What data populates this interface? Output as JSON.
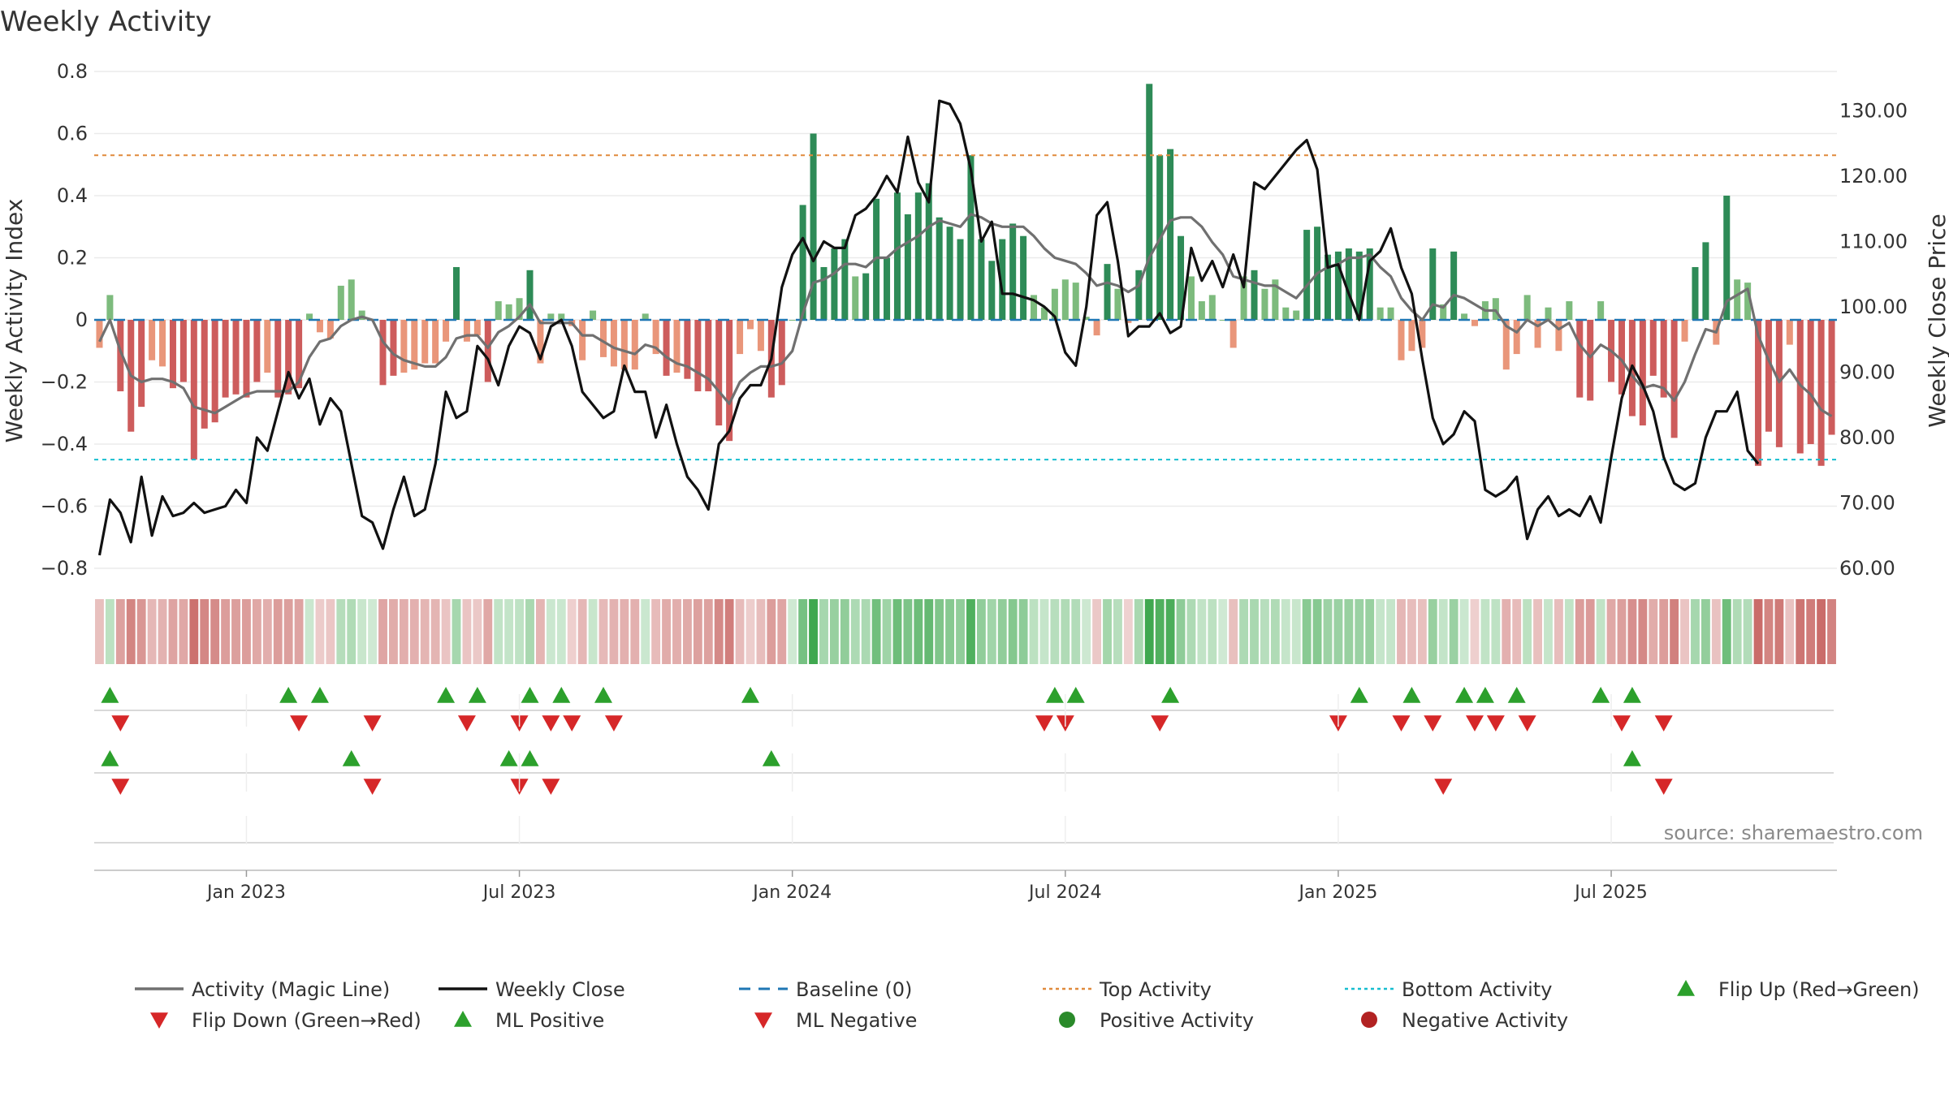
{
  "chart_data": {
    "type": "bar+line",
    "title": "Weekly Activity",
    "ylabel_left": "Weekly Activity Index",
    "ylabel_right": "Weekly Close Price",
    "ylim_left": [
      -0.8,
      0.8
    ],
    "yticks_left": [
      "0.8",
      "0.6",
      "0.4",
      "0.2",
      "0",
      "−0.2",
      "−0.4",
      "−0.6",
      "−0.8"
    ],
    "ytick_values_left": [
      0.8,
      0.6,
      0.4,
      0.2,
      0,
      -0.2,
      -0.4,
      -0.6,
      -0.8
    ],
    "ylim_right": [
      60,
      136
    ],
    "yticks_right": [
      "130.00",
      "120.00",
      "110.00",
      "100.00",
      "90.00",
      "80.00",
      "70.00",
      "60.00"
    ],
    "ytick_values_right": [
      130,
      120,
      110,
      100,
      90,
      80,
      70,
      60
    ],
    "x_labels": [
      "Jan 2023",
      "Jul 2023",
      "Jan 2024",
      "Jul 2024",
      "Jan 2025",
      "Jul 2025"
    ],
    "x_label_weeks": [
      14,
      40,
      66,
      92,
      118,
      144
    ],
    "top_activity": 0.53,
    "bottom_activity": -0.45,
    "activity": [
      -0.09,
      0.08,
      -0.23,
      -0.36,
      -0.28,
      -0.13,
      -0.15,
      -0.22,
      -0.2,
      -0.45,
      -0.35,
      -0.33,
      -0.25,
      -0.24,
      -0.25,
      -0.2,
      -0.17,
      -0.25,
      -0.24,
      -0.22,
      0.02,
      -0.04,
      -0.06,
      0.11,
      0.13,
      0.03,
      0.0,
      -0.21,
      -0.18,
      -0.17,
      -0.16,
      -0.14,
      -0.14,
      -0.07,
      0.17,
      -0.07,
      -0.05,
      -0.2,
      0.06,
      0.05,
      0.07,
      0.16,
      -0.14,
      0.02,
      0.02,
      -0.02,
      -0.13,
      0.03,
      -0.12,
      -0.15,
      -0.16,
      -0.16,
      0.02,
      -0.11,
      -0.18,
      -0.17,
      -0.19,
      -0.23,
      -0.23,
      -0.34,
      -0.39,
      -0.11,
      -0.03,
      -0.1,
      -0.25,
      -0.21,
      0.0,
      0.37,
      0.6,
      0.17,
      0.23,
      0.26,
      0.14,
      0.15,
      0.39,
      0.2,
      0.41,
      0.34,
      0.41,
      0.44,
      0.33,
      0.3,
      0.26,
      0.53,
      0.26,
      0.19,
      0.26,
      0.31,
      0.27,
      0.08,
      0.04,
      0.1,
      0.13,
      0.12,
      0.01,
      -0.05,
      0.18,
      0.1,
      -0.01,
      0.16,
      0.76,
      0.53,
      0.55,
      0.27,
      0.14,
      0.06,
      0.08,
      0.0,
      -0.09,
      0.14,
      0.16,
      0.1,
      0.13,
      0.04,
      0.03,
      0.29,
      0.3,
      0.21,
      0.22,
      0.23,
      0.22,
      0.23,
      0.04,
      0.04,
      -0.13,
      -0.1,
      -0.09,
      0.23,
      0.05,
      0.22,
      0.02,
      -0.02,
      0.06,
      0.07,
      -0.16,
      -0.11,
      0.08,
      -0.09,
      0.04,
      -0.1,
      0.06,
      -0.25,
      -0.26,
      0.06,
      -0.2,
      -0.24,
      -0.31,
      -0.34,
      -0.18,
      -0.25,
      -0.38,
      -0.07,
      0.17,
      0.25,
      -0.08,
      0.4,
      0.13,
      0.12,
      -0.47,
      -0.36,
      -0.41,
      -0.08,
      -0.43,
      -0.4,
      -0.47,
      -0.37
    ],
    "close": [
      62.0,
      70.5,
      68.5,
      64.0,
      74.0,
      65.0,
      71.0,
      68.0,
      68.5,
      70.0,
      68.5,
      69.0,
      69.5,
      72.0,
      70.0,
      80.0,
      78.0,
      84.0,
      90.0,
      86.0,
      89.0,
      82.0,
      86.0,
      84.0,
      76.0,
      68.0,
      67.0,
      63.0,
      69.0,
      74.0,
      68.0,
      69.0,
      76.0,
      87.0,
      83.0,
      84.0,
      94.0,
      92.0,
      88.0,
      94.0,
      97.0,
      96.0,
      92.0,
      97.0,
      98.0,
      94.0,
      87.0,
      85.0,
      83.0,
      84.0,
      91.0,
      87.0,
      87.0,
      80.0,
      85.0,
      79.0,
      74.0,
      72.0,
      69.0,
      79.0,
      81.0,
      86.0,
      88.0,
      88.0,
      92.0,
      103.0,
      108.0,
      110.5,
      107.0,
      110.0,
      109.0,
      109.0,
      114.0,
      115.0,
      117.0,
      120.0,
      117.5,
      126.0,
      119.0,
      116.0,
      131.5,
      131.0,
      128.0,
      121.0,
      110.0,
      113.0,
      102.0,
      102.0,
      101.5,
      101.0,
      100.0,
      98.5,
      93.0,
      91.0,
      100.0,
      114.0,
      116.0,
      107.0,
      95.5,
      97.0,
      97.0,
      99.0,
      96.0,
      97.0,
      109.0,
      104.0,
      107.0,
      103.0,
      108.0,
      103.0,
      119.0,
      118.0,
      120.0,
      122.0,
      124.0,
      125.5,
      121.0,
      106.0,
      106.5,
      102.0,
      98.0,
      107.0,
      108.5,
      112.0,
      106.0,
      102.0,
      92.0,
      83.0,
      79.0,
      80.5,
      84.0,
      82.5,
      72.0,
      71.0,
      72.0,
      74.0,
      64.5,
      69.0,
      71.0,
      68.0,
      69.0,
      68.0,
      71.0,
      67.0,
      77.0,
      86.0,
      91.0,
      88.0,
      84.0,
      77.0,
      73.0,
      72.0,
      73.0,
      80.0,
      84.0,
      84.0,
      87.0,
      78.0,
      76.0
    ],
    "magic_line": [
      -0.07,
      0.0,
      -0.1,
      -0.18,
      -0.2,
      -0.19,
      -0.19,
      -0.2,
      -0.22,
      -0.28,
      -0.29,
      -0.3,
      -0.28,
      -0.26,
      -0.24,
      -0.23,
      -0.23,
      -0.23,
      -0.23,
      -0.2,
      -0.12,
      -0.07,
      -0.06,
      -0.02,
      0.0,
      0.01,
      0.0,
      -0.07,
      -0.11,
      -0.13,
      -0.14,
      -0.15,
      -0.15,
      -0.12,
      -0.06,
      -0.05,
      -0.05,
      -0.09,
      -0.04,
      -0.02,
      0.01,
      0.05,
      -0.01,
      -0.01,
      -0.01,
      -0.01,
      -0.05,
      -0.05,
      -0.07,
      -0.09,
      -0.1,
      -0.11,
      -0.08,
      -0.09,
      -0.12,
      -0.14,
      -0.15,
      -0.17,
      -0.19,
      -0.23,
      -0.27,
      -0.2,
      -0.17,
      -0.15,
      -0.15,
      -0.14,
      -0.1,
      0.02,
      0.12,
      0.13,
      0.15,
      0.18,
      0.18,
      0.17,
      0.2,
      0.2,
      0.23,
      0.25,
      0.27,
      0.3,
      0.32,
      0.31,
      0.3,
      0.34,
      0.33,
      0.31,
      0.3,
      0.3,
      0.3,
      0.27,
      0.23,
      0.2,
      0.19,
      0.18,
      0.15,
      0.11,
      0.12,
      0.11,
      0.09,
      0.11,
      0.2,
      0.26,
      0.32,
      0.33,
      0.33,
      0.3,
      0.25,
      0.21,
      0.14,
      0.13,
      0.12,
      0.11,
      0.11,
      0.09,
      0.07,
      0.11,
      0.15,
      0.17,
      0.18,
      0.2,
      0.2,
      0.21,
      0.17,
      0.14,
      0.07,
      0.03,
      0.0,
      0.05,
      0.04,
      0.08,
      0.07,
      0.05,
      0.03,
      0.03,
      -0.02,
      -0.04,
      0.0,
      -0.02,
      0.0,
      -0.03,
      -0.01,
      -0.08,
      -0.12,
      -0.08,
      -0.1,
      -0.13,
      -0.18,
      -0.22,
      -0.21,
      -0.22,
      -0.26,
      -0.2,
      -0.11,
      -0.03,
      -0.04,
      0.06,
      0.08,
      0.1,
      -0.05,
      -0.13,
      -0.2,
      -0.16,
      -0.21,
      -0.24,
      -0.29,
      -0.31
    ],
    "heat_strip": "one colored cell per week; green = positive activity, red = negative activity; darker = stronger",
    "flip_up_weeks": [
      1,
      18,
      21,
      33,
      36,
      41,
      44,
      48,
      62,
      91,
      93,
      102,
      120,
      125,
      130,
      132,
      135,
      143,
      146
    ],
    "flip_down_weeks": [
      2,
      19,
      26,
      35,
      40,
      43,
      45,
      49,
      90,
      92,
      101,
      118,
      124,
      127,
      131,
      133,
      136,
      145,
      149
    ],
    "ml_positive_weeks": [
      1,
      24,
      39,
      41,
      64,
      146
    ],
    "ml_negative_weeks": [
      2,
      26,
      40,
      43,
      128,
      149
    ],
    "legend": [
      {
        "label": "Activity (Magic Line)",
        "symbol": "line",
        "color": "#707070"
      },
      {
        "label": "Weekly Close",
        "symbol": "line",
        "color": "#111111"
      },
      {
        "label": "Baseline (0)",
        "symbol": "dashed",
        "color": "#1f77b4"
      },
      {
        "label": "Top Activity",
        "symbol": "dotted",
        "color": "#e08a3c"
      },
      {
        "label": "Bottom Activity",
        "symbol": "dotted",
        "color": "#17becf"
      },
      {
        "label": "Flip Up (Red→Green)",
        "symbol": "triangle-up",
        "color": "#2ca02c"
      },
      {
        "label": "Flip Down (Green→Red)",
        "symbol": "triangle-down",
        "color": "#d62728"
      },
      {
        "label": "ML Positive",
        "symbol": "triangle-up",
        "color": "#2ca02c"
      },
      {
        "label": "ML Negative",
        "symbol": "triangle-down",
        "color": "#d62728"
      },
      {
        "label": "Positive Activity",
        "symbol": "circle",
        "color": "#2a8a2a"
      },
      {
        "label": "Negative Activity",
        "symbol": "circle",
        "color": "#b22222"
      }
    ],
    "source": "source: sharemaestro.com",
    "colors": {
      "pos_strong": "#2e8b57",
      "pos_weak": "#7dbb7d",
      "neg_strong": "#cd5c5c",
      "neg_weak": "#e9967a",
      "magic": "#707070",
      "close": "#111111",
      "baseline": "#1f77b4",
      "top": "#e08a3c",
      "bottom": "#17becf",
      "up": "#2ca02c",
      "down": "#d62728"
    }
  }
}
